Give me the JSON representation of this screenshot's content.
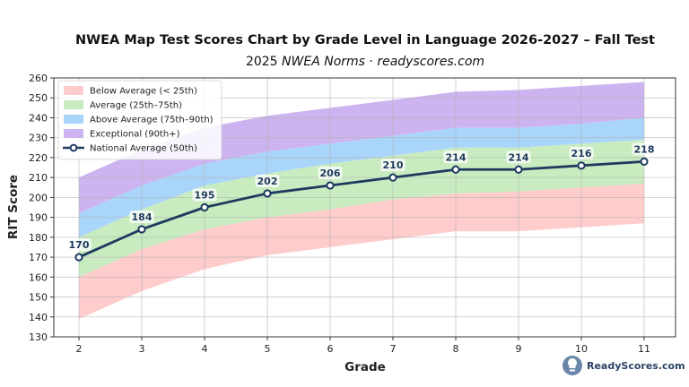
{
  "chart_data": {
    "type": "area",
    "title": "NWEA Map Test Scores Chart by Grade Level in Language 2026-2027 – Fall Test",
    "subtitle_prefix": "2025 ",
    "subtitle_italic": "NWEA Norms",
    "subtitle_sep": " · ",
    "subtitle_site": "readyscores.com",
    "xlabel": "Grade",
    "ylabel": "RIT Score",
    "x": [
      2,
      3,
      4,
      5,
      6,
      7,
      8,
      9,
      10,
      11
    ],
    "xlim": [
      1.6,
      11.5
    ],
    "ylim": [
      130,
      260
    ],
    "yticks": [
      130,
      140,
      150,
      160,
      170,
      180,
      190,
      200,
      210,
      220,
      230,
      240,
      250,
      260
    ],
    "grid": true,
    "legend_position": "top-left",
    "bands": [
      {
        "name": "Below Average (< 25th)",
        "color": "#ffcccc",
        "lower": [
          139,
          153,
          164,
          171,
          175,
          179,
          183,
          183,
          185,
          187
        ],
        "upper": [
          160,
          174,
          184,
          190,
          194,
          199,
          202,
          203,
          205,
          207
        ]
      },
      {
        "name": "Average (25th–75th)",
        "color": "#c8ecc0",
        "lower": [
          160,
          174,
          184,
          190,
          194,
          199,
          202,
          203,
          205,
          207
        ],
        "upper": [
          180,
          194,
          206,
          212,
          217,
          221,
          225,
          225,
          227,
          229
        ]
      },
      {
        "name": "Above Average (75th–90th)",
        "color": "#a9d5fb",
        "lower": [
          180,
          194,
          206,
          212,
          217,
          221,
          225,
          225,
          227,
          229
        ],
        "upper": [
          192,
          206,
          217,
          223,
          227,
          231,
          235,
          235,
          237,
          240
        ]
      },
      {
        "name": "Exceptional (90th+)",
        "color": "#cdb4f0",
        "lower": [
          192,
          206,
          217,
          223,
          227,
          231,
          235,
          235,
          237,
          240
        ],
        "upper": [
          210,
          224,
          235,
          241,
          245,
          249,
          253,
          254,
          256,
          258
        ]
      }
    ],
    "series": [
      {
        "name": "National Average (50th)",
        "color": "#1f3a5f",
        "values": [
          170,
          184,
          195,
          202,
          206,
          210,
          214,
          214,
          216,
          218
        ]
      }
    ]
  },
  "brand": {
    "label": "ReadyScores.com",
    "icon": "lightbulb-icon",
    "icon_color": "#6b86a8"
  }
}
